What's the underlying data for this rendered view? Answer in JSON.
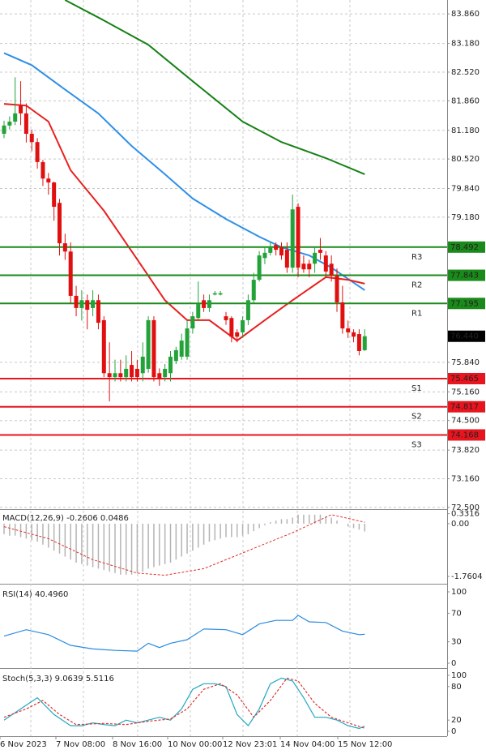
{
  "chart_data": [
    {
      "type": "candlestick",
      "x_labels": [
        "6 Nov 2023",
        "7 Nov 08:00",
        "8 Nov 16:00",
        "10 Nov 00:00",
        "12 Nov 23:01",
        "14 Nov 04:00",
        "15 Nov 12:00"
      ],
      "ylim": [
        72.46,
        84.18
      ],
      "yticks": [
        {
          "value": 83.86,
          "label": "83.860"
        },
        {
          "value": 83.18,
          "label": "83.180"
        },
        {
          "value": 82.52,
          "label": "82.520"
        },
        {
          "value": 81.86,
          "label": "81.860"
        },
        {
          "value": 81.18,
          "label": "81.180"
        },
        {
          "value": 80.52,
          "label": "80.520"
        },
        {
          "value": 79.84,
          "label": "79.840"
        },
        {
          "value": 79.18,
          "label": "79.180"
        },
        {
          "value": 75.84,
          "label": "75.840"
        },
        {
          "value": 75.16,
          "label": "75.160"
        },
        {
          "value": 74.5,
          "label": "74.500"
        },
        {
          "value": 73.82,
          "label": "73.820"
        },
        {
          "value": 73.16,
          "label": "73.160"
        },
        {
          "value": 72.5,
          "label": "72.500"
        }
      ],
      "grid": true,
      "up_color": "#23a23a",
      "down_color": "#e01010",
      "candles": {
        "open": [
          81.1,
          81.29,
          81.38,
          81.75,
          81.57,
          81.1,
          80.91,
          80.45,
          80.07,
          79.98,
          79.51,
          78.58,
          78.39,
          77.37,
          77.09,
          77.27,
          77.09,
          77.27,
          76.81,
          75.59,
          75.5,
          75.59,
          75.5,
          75.78,
          75.69,
          75.59,
          75.69,
          76.81,
          75.59,
          75.5,
          75.59,
          75.87,
          75.97,
          75.97,
          76.62,
          76.86,
          77.27,
          77.09,
          77.4,
          77.4,
          76.9,
          76.86,
          76.53,
          76.53,
          76.81,
          77.27,
          77.74,
          78.24,
          78.36,
          78.54,
          78.49,
          78.43,
          78.02,
          79.42,
          78.11,
          78.11,
          78.11,
          78.43,
          78.3,
          78.11,
          77.83,
          77.22,
          76.62,
          76.53,
          76.49,
          76.12
        ],
        "high": [
          81.4,
          81.5,
          82.4,
          82.31,
          81.8,
          81.2,
          81.0,
          80.5,
          80.2,
          80.0,
          79.6,
          78.8,
          78.6,
          77.6,
          77.5,
          77.4,
          77.5,
          77.4,
          76.9,
          76.3,
          75.9,
          75.9,
          76.0,
          76.1,
          75.9,
          76.3,
          76.9,
          76.9,
          75.7,
          75.8,
          76.1,
          76.2,
          76.5,
          76.8,
          77.0,
          77.7,
          77.4,
          77.4,
          77.48,
          77.48,
          77.0,
          76.9,
          76.6,
          76.9,
          77.4,
          77.9,
          78.4,
          78.5,
          78.6,
          78.6,
          78.6,
          78.6,
          79.7,
          79.5,
          78.3,
          78.2,
          78.5,
          78.7,
          78.4,
          78.3,
          78.0,
          77.6,
          76.8,
          76.6,
          76.6,
          76.6
        ],
        "low": [
          81.0,
          81.2,
          81.3,
          81.3,
          80.9,
          80.7,
          80.3,
          79.9,
          79.7,
          79.1,
          78.3,
          78.2,
          77.2,
          76.9,
          76.8,
          76.6,
          76.9,
          76.6,
          75.5,
          74.94,
          75.4,
          75.4,
          75.4,
          75.4,
          75.4,
          75.4,
          75.6,
          75.4,
          75.3,
          75.4,
          75.4,
          75.8,
          75.9,
          75.9,
          76.5,
          76.8,
          77.0,
          77.0,
          77.38,
          77.38,
          76.7,
          76.3,
          76.3,
          76.4,
          76.7,
          77.2,
          77.7,
          78.1,
          78.3,
          78.3,
          78.2,
          77.9,
          77.9,
          77.8,
          77.9,
          77.8,
          77.9,
          78.2,
          77.8,
          77.7,
          77.0,
          76.5,
          76.4,
          76.3,
          76.0,
          76.1
        ],
        "close": [
          81.29,
          81.38,
          81.57,
          81.57,
          81.1,
          80.91,
          80.45,
          80.07,
          79.98,
          79.42,
          78.58,
          78.39,
          77.37,
          77.09,
          77.27,
          77.05,
          77.27,
          76.75,
          75.59,
          75.5,
          75.59,
          75.5,
          75.69,
          75.5,
          75.5,
          75.97,
          76.81,
          75.5,
          75.45,
          75.69,
          75.97,
          76.12,
          76.34,
          76.62,
          76.9,
          77.18,
          77.09,
          77.27,
          77.43,
          77.43,
          76.81,
          76.43,
          76.43,
          76.81,
          77.27,
          77.74,
          78.3,
          78.36,
          78.49,
          78.43,
          78.3,
          78.02,
          79.36,
          78.02,
          77.98,
          77.98,
          78.36,
          78.36,
          77.93,
          77.83,
          77.22,
          76.62,
          76.53,
          76.43,
          76.1,
          76.44
        ]
      },
      "moving_averages": [
        {
          "color": "#168016",
          "x": [
            11,
            18,
            26,
            34,
            43,
            50,
            58,
            65
          ],
          "values": [
            84.18,
            83.71,
            83.15,
            82.31,
            81.38,
            80.91,
            80.54,
            80.17
          ]
        },
        {
          "color": "#2f8fe8",
          "x": [
            0,
            5,
            11,
            17,
            23,
            29,
            34,
            40,
            46,
            50,
            55,
            59,
            65
          ],
          "values": [
            82.96,
            82.68,
            82.12,
            81.57,
            80.82,
            80.17,
            79.61,
            79.14,
            78.73,
            78.49,
            78.3,
            78.02,
            77.5
          ]
        },
        {
          "color": "#e8201e",
          "x": [
            0,
            4,
            8,
            12,
            18,
            24,
            29,
            33,
            37,
            42,
            47,
            52,
            58,
            62,
            65
          ],
          "values": [
            81.79,
            81.75,
            81.38,
            80.26,
            79.33,
            78.21,
            77.27,
            76.81,
            76.81,
            76.34,
            76.81,
            77.27,
            77.8,
            77.74,
            77.65
          ]
        }
      ],
      "levels": [
        {
          "name": "R3",
          "value": 78.492,
          "color": "#1a8a1a"
        },
        {
          "name": "R2",
          "value": 77.843,
          "color": "#1a8a1a"
        },
        {
          "name": "R1",
          "value": 77.195,
          "color": "#1a8a1a"
        },
        {
          "name": "S1",
          "value": 75.465,
          "color": "#e8141e"
        },
        {
          "name": "S2",
          "value": 74.817,
          "color": "#e8141e"
        },
        {
          "name": "S3",
          "value": 74.168,
          "color": "#e8141e"
        }
      ],
      "last": {
        "value": 76.44,
        "label": "76.440"
      }
    },
    {
      "type": "macd",
      "title": "MACD(12,26,9) -0.2606 0.0486",
      "ylim": [
        -1.95,
        0.43
      ],
      "yticks": [
        0.3316,
        {
          "value": 0,
          "label": "0.00"
        },
        -1.7604
      ],
      "histogram": {
        "color": "#b4b4b4",
        "values": [
          -0.35,
          -0.4,
          -0.4,
          -0.45,
          -0.5,
          -0.55,
          -0.6,
          -0.7,
          -0.8,
          -0.9,
          -1.0,
          -1.1,
          -1.2,
          -1.3,
          -1.35,
          -1.4,
          -1.45,
          -1.5,
          -1.55,
          -1.6,
          -1.65,
          -1.7,
          -1.7,
          -1.7,
          -1.65,
          -1.6,
          -1.5,
          -1.45,
          -1.4,
          -1.35,
          -1.3,
          -1.2,
          -1.1,
          -1.0,
          -0.9,
          -0.8,
          -0.7,
          -0.6,
          -0.55,
          -0.5,
          -0.45,
          -0.45,
          -0.45,
          -0.4,
          -0.35,
          -0.25,
          -0.15,
          -0.05,
          0.05,
          0.1,
          0.15,
          0.15,
          0.2,
          0.3,
          0.3,
          0.3,
          0.3,
          0.3,
          0.25,
          0.2,
          0.1,
          0.0,
          -0.1,
          -0.15,
          -0.2,
          -0.2606
        ]
      },
      "signal": {
        "color": "#e03030",
        "x": [
          0,
          8,
          16,
          24,
          29,
          36,
          44,
          52,
          59,
          65
        ],
        "values": [
          -0.1,
          -0.5,
          -1.2,
          -1.65,
          -1.72,
          -1.5,
          -0.9,
          -0.3,
          0.3,
          0.0486
        ]
      }
    },
    {
      "type": "line",
      "title": "RSI(14) 40.4960",
      "ylim": [
        -4.5,
        106.8
      ],
      "yticks": [
        100,
        70,
        30,
        0
      ],
      "lines": [
        {
          "color": "#2a8be0",
          "dashed": false,
          "x": [
            0,
            4,
            8,
            12,
            16,
            20,
            24,
            26,
            28,
            30,
            33,
            36,
            40,
            43,
            46,
            49,
            52,
            53,
            55,
            58,
            61,
            64,
            65
          ],
          "values": [
            38,
            47,
            40,
            25,
            20,
            18,
            17,
            28,
            22,
            28,
            33,
            48,
            47,
            40,
            55,
            60,
            60,
            67,
            58,
            57,
            45,
            40,
            40.496
          ]
        }
      ]
    },
    {
      "type": "line",
      "title": "Stoch(5,3,3) 9.0639 5.5116",
      "ylim": [
        -8.7,
        107.2
      ],
      "yticks": [
        100,
        80,
        20,
        0
      ],
      "lines": [
        {
          "color": "#1fa8c0",
          "dashed": false,
          "x": [
            0,
            3,
            6,
            9,
            12,
            14,
            16,
            18,
            20,
            22,
            24,
            26,
            28,
            30,
            32,
            34,
            36,
            38,
            40,
            42,
            44,
            46,
            48,
            50,
            52,
            54,
            56,
            58,
            60,
            62,
            64,
            65
          ],
          "values": [
            20,
            40,
            60,
            30,
            10,
            10,
            15,
            12,
            10,
            20,
            15,
            20,
            25,
            20,
            40,
            75,
            85,
            85,
            80,
            30,
            10,
            40,
            85,
            95,
            90,
            60,
            25,
            25,
            20,
            10,
            5,
            9.0639
          ]
        },
        {
          "color": "#e03030",
          "dashed": true,
          "x": [
            0,
            4,
            7,
            10,
            13,
            18,
            22,
            26,
            30,
            33,
            36,
            39,
            42,
            45,
            48,
            51,
            53,
            56,
            59,
            62,
            65
          ],
          "values": [
            25,
            40,
            55,
            30,
            12,
            14,
            12,
            18,
            22,
            40,
            75,
            85,
            65,
            25,
            55,
            95,
            90,
            50,
            25,
            15,
            5.5116
          ]
        }
      ]
    }
  ]
}
